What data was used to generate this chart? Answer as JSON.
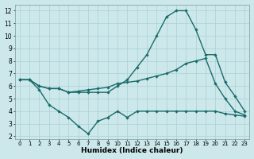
{
  "xlabel": "Humidex (Indice chaleur)",
  "xlim": [
    -0.5,
    23.5
  ],
  "ylim": [
    1.8,
    12.5
  ],
  "yticks": [
    2,
    3,
    4,
    5,
    6,
    7,
    8,
    9,
    10,
    11,
    12
  ],
  "xticks": [
    0,
    1,
    2,
    3,
    4,
    5,
    6,
    7,
    8,
    9,
    10,
    11,
    12,
    13,
    14,
    15,
    16,
    17,
    18,
    19,
    20,
    21,
    22,
    23
  ],
  "bg_color": "#cce8eb",
  "grid_color": "#aad0d5",
  "line_color": "#1a6b6b",
  "line1_x": [
    0,
    1,
    2,
    3,
    4,
    5,
    6,
    7,
    8,
    9,
    10,
    11,
    12,
    13,
    14,
    15,
    16,
    17,
    18,
    19,
    20,
    21,
    22,
    23
  ],
  "line1_y": [
    6.5,
    6.5,
    5.7,
    4.5,
    4.0,
    3.5,
    2.8,
    2.2,
    3.2,
    3.5,
    4.0,
    3.5,
    4.0,
    4.0,
    4.0,
    4.0,
    4.0,
    4.0,
    4.0,
    4.0,
    4.0,
    3.8,
    3.7,
    3.6
  ],
  "line2_x": [
    0,
    1,
    2,
    3,
    4,
    5,
    6,
    7,
    8,
    9,
    10,
    11,
    12,
    13,
    14,
    15,
    16,
    17,
    18,
    19,
    20,
    21,
    22,
    23
  ],
  "line2_y": [
    6.5,
    6.5,
    6.0,
    5.8,
    5.8,
    5.5,
    5.5,
    5.5,
    5.5,
    5.5,
    6.0,
    6.5,
    7.5,
    8.5,
    10.0,
    11.5,
    12.0,
    12.0,
    10.5,
    8.5,
    8.5,
    6.3,
    5.2,
    4.0
  ],
  "line3_x": [
    0,
    1,
    2,
    3,
    4,
    5,
    6,
    7,
    8,
    9,
    10,
    11,
    12,
    13,
    14,
    15,
    16,
    17,
    18,
    19,
    20,
    21,
    22,
    23
  ],
  "line3_y": [
    6.5,
    6.5,
    6.0,
    5.8,
    5.8,
    5.5,
    5.6,
    5.7,
    5.8,
    5.9,
    6.2,
    6.3,
    6.4,
    6.6,
    6.8,
    7.0,
    7.3,
    7.8,
    8.0,
    8.2,
    6.2,
    5.0,
    4.0,
    3.7
  ]
}
